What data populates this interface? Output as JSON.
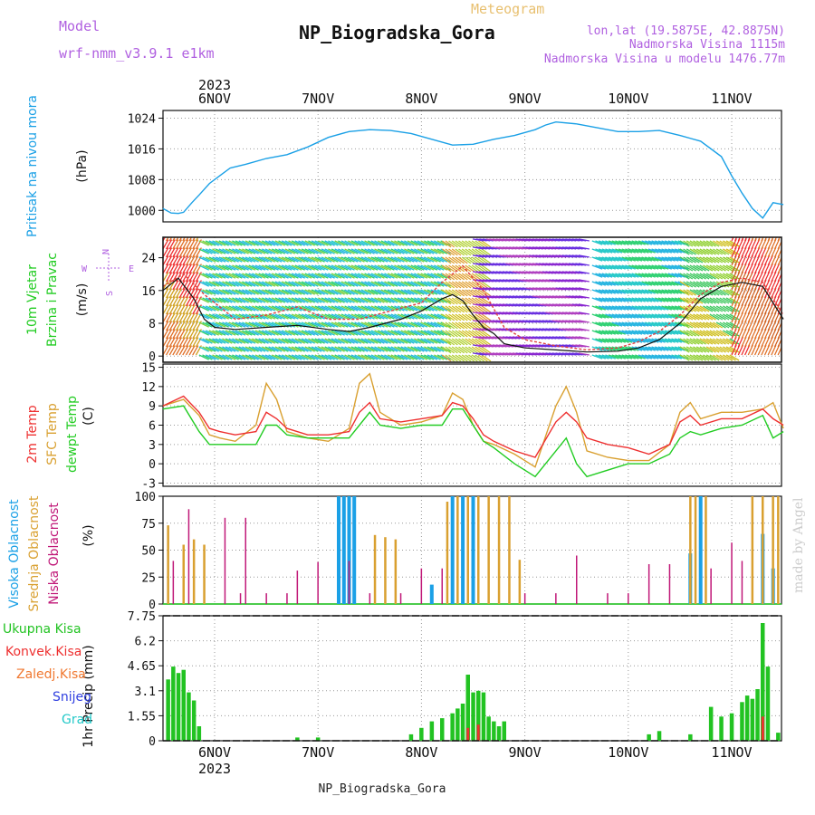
{
  "header": {
    "model_label": "Model",
    "model_name": "wrf-nmm_v3.9.1  e1km",
    "meteogram": "Meteogram",
    "station": "NP_Biogradska_Gora",
    "coords": "lon,lat (19.5875E, 42.8875N)",
    "elev": "Nadmorska Visina 1115m",
    "elev_model": "Nadmorska Visina u modelu 1476.77m",
    "year_top": "2023",
    "year_bottom": "2023",
    "footer": "NP_Biogradska_Gora",
    "watermark": "made by Angel"
  },
  "colors": {
    "pressure": "#1aa0e6",
    "temp2m": "#ee3030",
    "sfc": "#d9a030",
    "dew": "#22cc22",
    "high_cloud": "#1aa0e6",
    "mid_cloud": "#d9a030",
    "low_cloud": "#c01878",
    "precip": "#22c322",
    "conv": "#ee3030",
    "label_purple": "#b060e0",
    "label_green": "#22cc22"
  },
  "chart_data": [
    {
      "type": "line",
      "name": "pressure",
      "ylabel_main": "Pritisak na nivou mora",
      "ylabel_unit": "(hPa)",
      "yticks": [
        1000,
        1008,
        1016,
        1024
      ],
      "ylim": [
        997,
        1026
      ],
      "x_categories": [
        "6NOV",
        "7NOV",
        "8NOV",
        "9NOV",
        "10NOV",
        "11NOV"
      ],
      "x_points": [
        -0.5,
        -0.42,
        -0.35,
        -0.3,
        -0.22,
        -0.15,
        -0.05,
        0.05,
        0.15,
        0.3,
        0.5,
        0.7,
        0.9,
        1.1,
        1.3,
        1.5,
        1.7,
        1.9,
        2.1,
        2.3,
        2.5,
        2.7,
        2.9,
        3.1,
        3.2,
        3.3,
        3.5,
        3.7,
        3.9,
        4.1,
        4.3,
        4.5,
        4.7,
        4.9,
        5.0,
        5.1,
        5.2,
        5.3,
        5.4,
        5.5
      ],
      "y_points": [
        1000.5,
        999.3,
        999.2,
        999.5,
        1002,
        1004,
        1007,
        1009,
        1011,
        1012,
        1013.5,
        1014.5,
        1016.5,
        1019,
        1020.5,
        1021,
        1020.8,
        1020,
        1018.5,
        1017,
        1017.2,
        1018.5,
        1019.5,
        1021,
        1022.2,
        1023,
        1022.5,
        1021.5,
        1020.5,
        1020.5,
        1020.8,
        1019.5,
        1018,
        1014,
        1009,
        1004.5,
        1000.5,
        998,
        1002,
        1001.5
      ]
    },
    {
      "type": "line",
      "name": "wind",
      "ylabel_main": "10m Vjetar",
      "ylabel_main2": "Brzina i Pravac",
      "ylabel_unit": "(m/s)",
      "compass": {
        "n": "N",
        "w": "W",
        "e": "E",
        "s": "S"
      },
      "yticks": [
        0,
        8,
        16,
        24
      ],
      "ylim": [
        -1.5,
        29
      ],
      "x_points": [
        -0.5,
        -0.35,
        -0.2,
        -0.1,
        0,
        0.2,
        0.5,
        0.8,
        1.1,
        1.3,
        1.5,
        1.8,
        2.0,
        2.2,
        2.3,
        2.4,
        2.5,
        2.6,
        2.7,
        2.8,
        3.0,
        3.3,
        3.6,
        3.9,
        4.1,
        4.3,
        4.5,
        4.6,
        4.7,
        4.9,
        5.1,
        5.3,
        5.5
      ],
      "speed": [
        16,
        19,
        14,
        9,
        7,
        6.5,
        7,
        7.5,
        6.5,
        6,
        7,
        9,
        11,
        14,
        15,
        13.5,
        10,
        7,
        5.5,
        3,
        2,
        1.5,
        1,
        1.2,
        2,
        4,
        8,
        11,
        14,
        17,
        18,
        17,
        9
      ],
      "gust_x": [
        -0.5,
        -0.3,
        -0.1,
        0.2,
        0.5,
        0.8,
        1.1,
        1.4,
        1.7,
        2.0,
        2.2,
        2.4,
        2.6,
        2.8,
        3.0,
        3.3,
        3.6,
        3.9,
        4.1,
        4.3,
        4.5,
        4.7,
        4.9,
        5.1,
        5.3,
        5.5
      ],
      "gust": [
        17,
        20,
        15,
        9,
        10,
        12,
        9,
        9,
        11,
        13,
        18,
        22,
        16,
        7,
        4,
        2.5,
        1.5,
        2,
        3.5,
        6,
        10,
        15,
        18,
        19,
        18,
        10
      ]
    },
    {
      "type": "line",
      "name": "temperature",
      "ylabel_main": "2m Temp",
      "ylabel_main2": "SFC Temp",
      "ylabel_main3": "dewpt Temp",
      "ylabel_unit": "(C)",
      "yticks": [
        -3,
        0,
        3,
        6,
        9,
        12,
        15
      ],
      "ylim": [
        -3.5,
        15.5
      ],
      "x_points": [
        -0.5,
        -0.3,
        -0.15,
        -0.05,
        0.05,
        0.2,
        0.4,
        0.5,
        0.6,
        0.7,
        0.9,
        1.1,
        1.3,
        1.4,
        1.5,
        1.6,
        1.8,
        2.0,
        2.2,
        2.3,
        2.4,
        2.5,
        2.6,
        2.7,
        2.9,
        3.1,
        3.3,
        3.4,
        3.5,
        3.6,
        3.8,
        4.0,
        4.2,
        4.4,
        4.5,
        4.6,
        4.7,
        4.9,
        5.1,
        5.3,
        5.4,
        5.5
      ],
      "t2m": [
        9,
        10.5,
        8,
        5.5,
        5,
        4.5,
        5,
        8,
        7,
        5.5,
        4.5,
        4.5,
        5,
        8,
        9.5,
        7,
        6.5,
        7,
        7.5,
        9.5,
        9,
        7,
        4.5,
        3.5,
        2,
        1,
        6.5,
        8,
        6.5,
        4,
        3,
        2.5,
        1.5,
        3,
        6.5,
        7.5,
        6,
        7,
        7,
        8.5,
        7,
        6
      ],
      "sfc": [
        9,
        10,
        7.5,
        4.5,
        4,
        3.5,
        6,
        12.5,
        10,
        5,
        4,
        3.5,
        5.5,
        12.5,
        14,
        8,
        6,
        6.5,
        7.5,
        11,
        10,
        6,
        3.5,
        3,
        1.5,
        -0.5,
        9,
        12,
        8,
        2,
        1,
        0.5,
        0.5,
        3,
        8,
        9.5,
        7,
        8,
        8,
        8.5,
        9.5,
        5.5
      ],
      "dew": [
        8.5,
        9,
        5,
        3,
        3,
        3,
        3,
        6,
        6,
        4.5,
        4,
        4,
        4,
        6,
        8,
        6,
        5.5,
        6,
        6,
        8.5,
        8.5,
        6,
        3.5,
        2.5,
        0,
        -2,
        2,
        4,
        0,
        -2,
        -1,
        0,
        0,
        1.5,
        4,
        5,
        4.5,
        5.5,
        6,
        7.5,
        4,
        5
      ]
    },
    {
      "type": "bar",
      "name": "cloud",
      "ylabel_main": "Visoka Oblacnost",
      "ylabel_main2": "Srednja Oblacnost",
      "ylabel_main3": "Niska Oblacnost",
      "ylabel_unit": "(%)",
      "yticks": [
        0,
        25,
        50,
        75,
        100
      ],
      "ylim": [
        0,
        100
      ],
      "high": [
        {
          "x": 1.2,
          "v": 100
        },
        {
          "x": 1.25,
          "v": 100
        },
        {
          "x": 1.3,
          "v": 100
        },
        {
          "x": 1.35,
          "v": 100
        },
        {
          "x": 2.1,
          "v": 18
        },
        {
          "x": 2.3,
          "v": 100
        },
        {
          "x": 2.4,
          "v": 100
        },
        {
          "x": 2.5,
          "v": 100
        },
        {
          "x": 4.6,
          "v": 47
        },
        {
          "x": 4.7,
          "v": 100
        },
        {
          "x": 5.3,
          "v": 65
        },
        {
          "x": 5.4,
          "v": 33
        }
      ],
      "mid": [
        {
          "x": -0.45,
          "v": 73
        },
        {
          "x": -0.3,
          "v": 55
        },
        {
          "x": -0.2,
          "v": 60
        },
        {
          "x": -0.1,
          "v": 55
        },
        {
          "x": 1.55,
          "v": 64
        },
        {
          "x": 1.65,
          "v": 62
        },
        {
          "x": 1.75,
          "v": 60
        },
        {
          "x": 2.25,
          "v": 95
        },
        {
          "x": 2.35,
          "v": 100
        },
        {
          "x": 2.45,
          "v": 100
        },
        {
          "x": 2.55,
          "v": 100
        },
        {
          "x": 2.65,
          "v": 100
        },
        {
          "x": 2.75,
          "v": 100
        },
        {
          "x": 2.85,
          "v": 100
        },
        {
          "x": 2.95,
          "v": 41
        },
        {
          "x": 4.6,
          "v": 100
        },
        {
          "x": 4.65,
          "v": 100
        },
        {
          "x": 4.75,
          "v": 100
        },
        {
          "x": 5.2,
          "v": 100
        },
        {
          "x": 5.3,
          "v": 100
        },
        {
          "x": 5.4,
          "v": 100
        },
        {
          "x": 5.45,
          "v": 100
        }
      ],
      "low": [
        {
          "x": -0.4,
          "v": 40
        },
        {
          "x": -0.25,
          "v": 88
        },
        {
          "x": 0.1,
          "v": 80
        },
        {
          "x": 0.3,
          "v": 80
        },
        {
          "x": 0.25,
          "v": 10
        },
        {
          "x": 0.5,
          "v": 10
        },
        {
          "x": 0.7,
          "v": 10
        },
        {
          "x": 0.8,
          "v": 31
        },
        {
          "x": 1.0,
          "v": 39
        },
        {
          "x": 1.3,
          "v": 40
        },
        {
          "x": 1.5,
          "v": 10
        },
        {
          "x": 1.8,
          "v": 10
        },
        {
          "x": 2.0,
          "v": 33
        },
        {
          "x": 2.2,
          "v": 33
        },
        {
          "x": 3.0,
          "v": 10
        },
        {
          "x": 3.3,
          "v": 10
        },
        {
          "x": 3.5,
          "v": 45
        },
        {
          "x": 3.8,
          "v": 10
        },
        {
          "x": 4.0,
          "v": 10
        },
        {
          "x": 4.2,
          "v": 37
        },
        {
          "x": 4.4,
          "v": 37
        },
        {
          "x": 4.8,
          "v": 33
        },
        {
          "x": 5.0,
          "v": 57
        },
        {
          "x": 5.1,
          "v": 40
        }
      ]
    },
    {
      "type": "bar",
      "name": "precip",
      "ylabel_main": "1hr Precip",
      "ylabel_unit": "(mm)",
      "legend": [
        "Ukupna  Kisa",
        "Konvek.Kisa",
        "Zaledj.Kisa",
        "Snijeg",
        "Grad"
      ],
      "yticks": [
        0,
        1.55,
        3.1,
        4.65,
        6.2,
        7.75
      ],
      "ylim": [
        0,
        7.75
      ],
      "total": [
        {
          "x": -0.45,
          "v": 3.8
        },
        {
          "x": -0.4,
          "v": 4.6
        },
        {
          "x": -0.35,
          "v": 4.2
        },
        {
          "x": -0.3,
          "v": 4.4
        },
        {
          "x": -0.25,
          "v": 3.0
        },
        {
          "x": -0.2,
          "v": 2.5
        },
        {
          "x": -0.15,
          "v": 0.9
        },
        {
          "x": 0.8,
          "v": 0.2
        },
        {
          "x": 1.0,
          "v": 0.2
        },
        {
          "x": 1.9,
          "v": 0.4
        },
        {
          "x": 2.0,
          "v": 0.8
        },
        {
          "x": 2.1,
          "v": 1.2
        },
        {
          "x": 2.2,
          "v": 1.4
        },
        {
          "x": 2.3,
          "v": 1.7
        },
        {
          "x": 2.35,
          "v": 2.0
        },
        {
          "x": 2.4,
          "v": 2.3
        },
        {
          "x": 2.45,
          "v": 4.1
        },
        {
          "x": 2.5,
          "v": 3.0
        },
        {
          "x": 2.55,
          "v": 3.1
        },
        {
          "x": 2.6,
          "v": 3.0
        },
        {
          "x": 2.65,
          "v": 1.5
        },
        {
          "x": 2.7,
          "v": 1.2
        },
        {
          "x": 2.75,
          "v": 0.9
        },
        {
          "x": 2.8,
          "v": 1.2
        },
        {
          "x": 4.2,
          "v": 0.4
        },
        {
          "x": 4.3,
          "v": 0.6
        },
        {
          "x": 4.6,
          "v": 0.4
        },
        {
          "x": 4.8,
          "v": 2.1
        },
        {
          "x": 4.9,
          "v": 1.5
        },
        {
          "x": 5.0,
          "v": 1.7
        },
        {
          "x": 5.1,
          "v": 2.4
        },
        {
          "x": 5.15,
          "v": 2.8
        },
        {
          "x": 5.2,
          "v": 2.6
        },
        {
          "x": 5.25,
          "v": 3.2
        },
        {
          "x": 5.3,
          "v": 7.3
        },
        {
          "x": 5.35,
          "v": 4.6
        },
        {
          "x": 5.45,
          "v": 0.5
        }
      ],
      "conv": [
        {
          "x": 2.45,
          "v": 0.8
        },
        {
          "x": 2.55,
          "v": 1.0
        },
        {
          "x": 5.3,
          "v": 1.5
        }
      ]
    }
  ]
}
